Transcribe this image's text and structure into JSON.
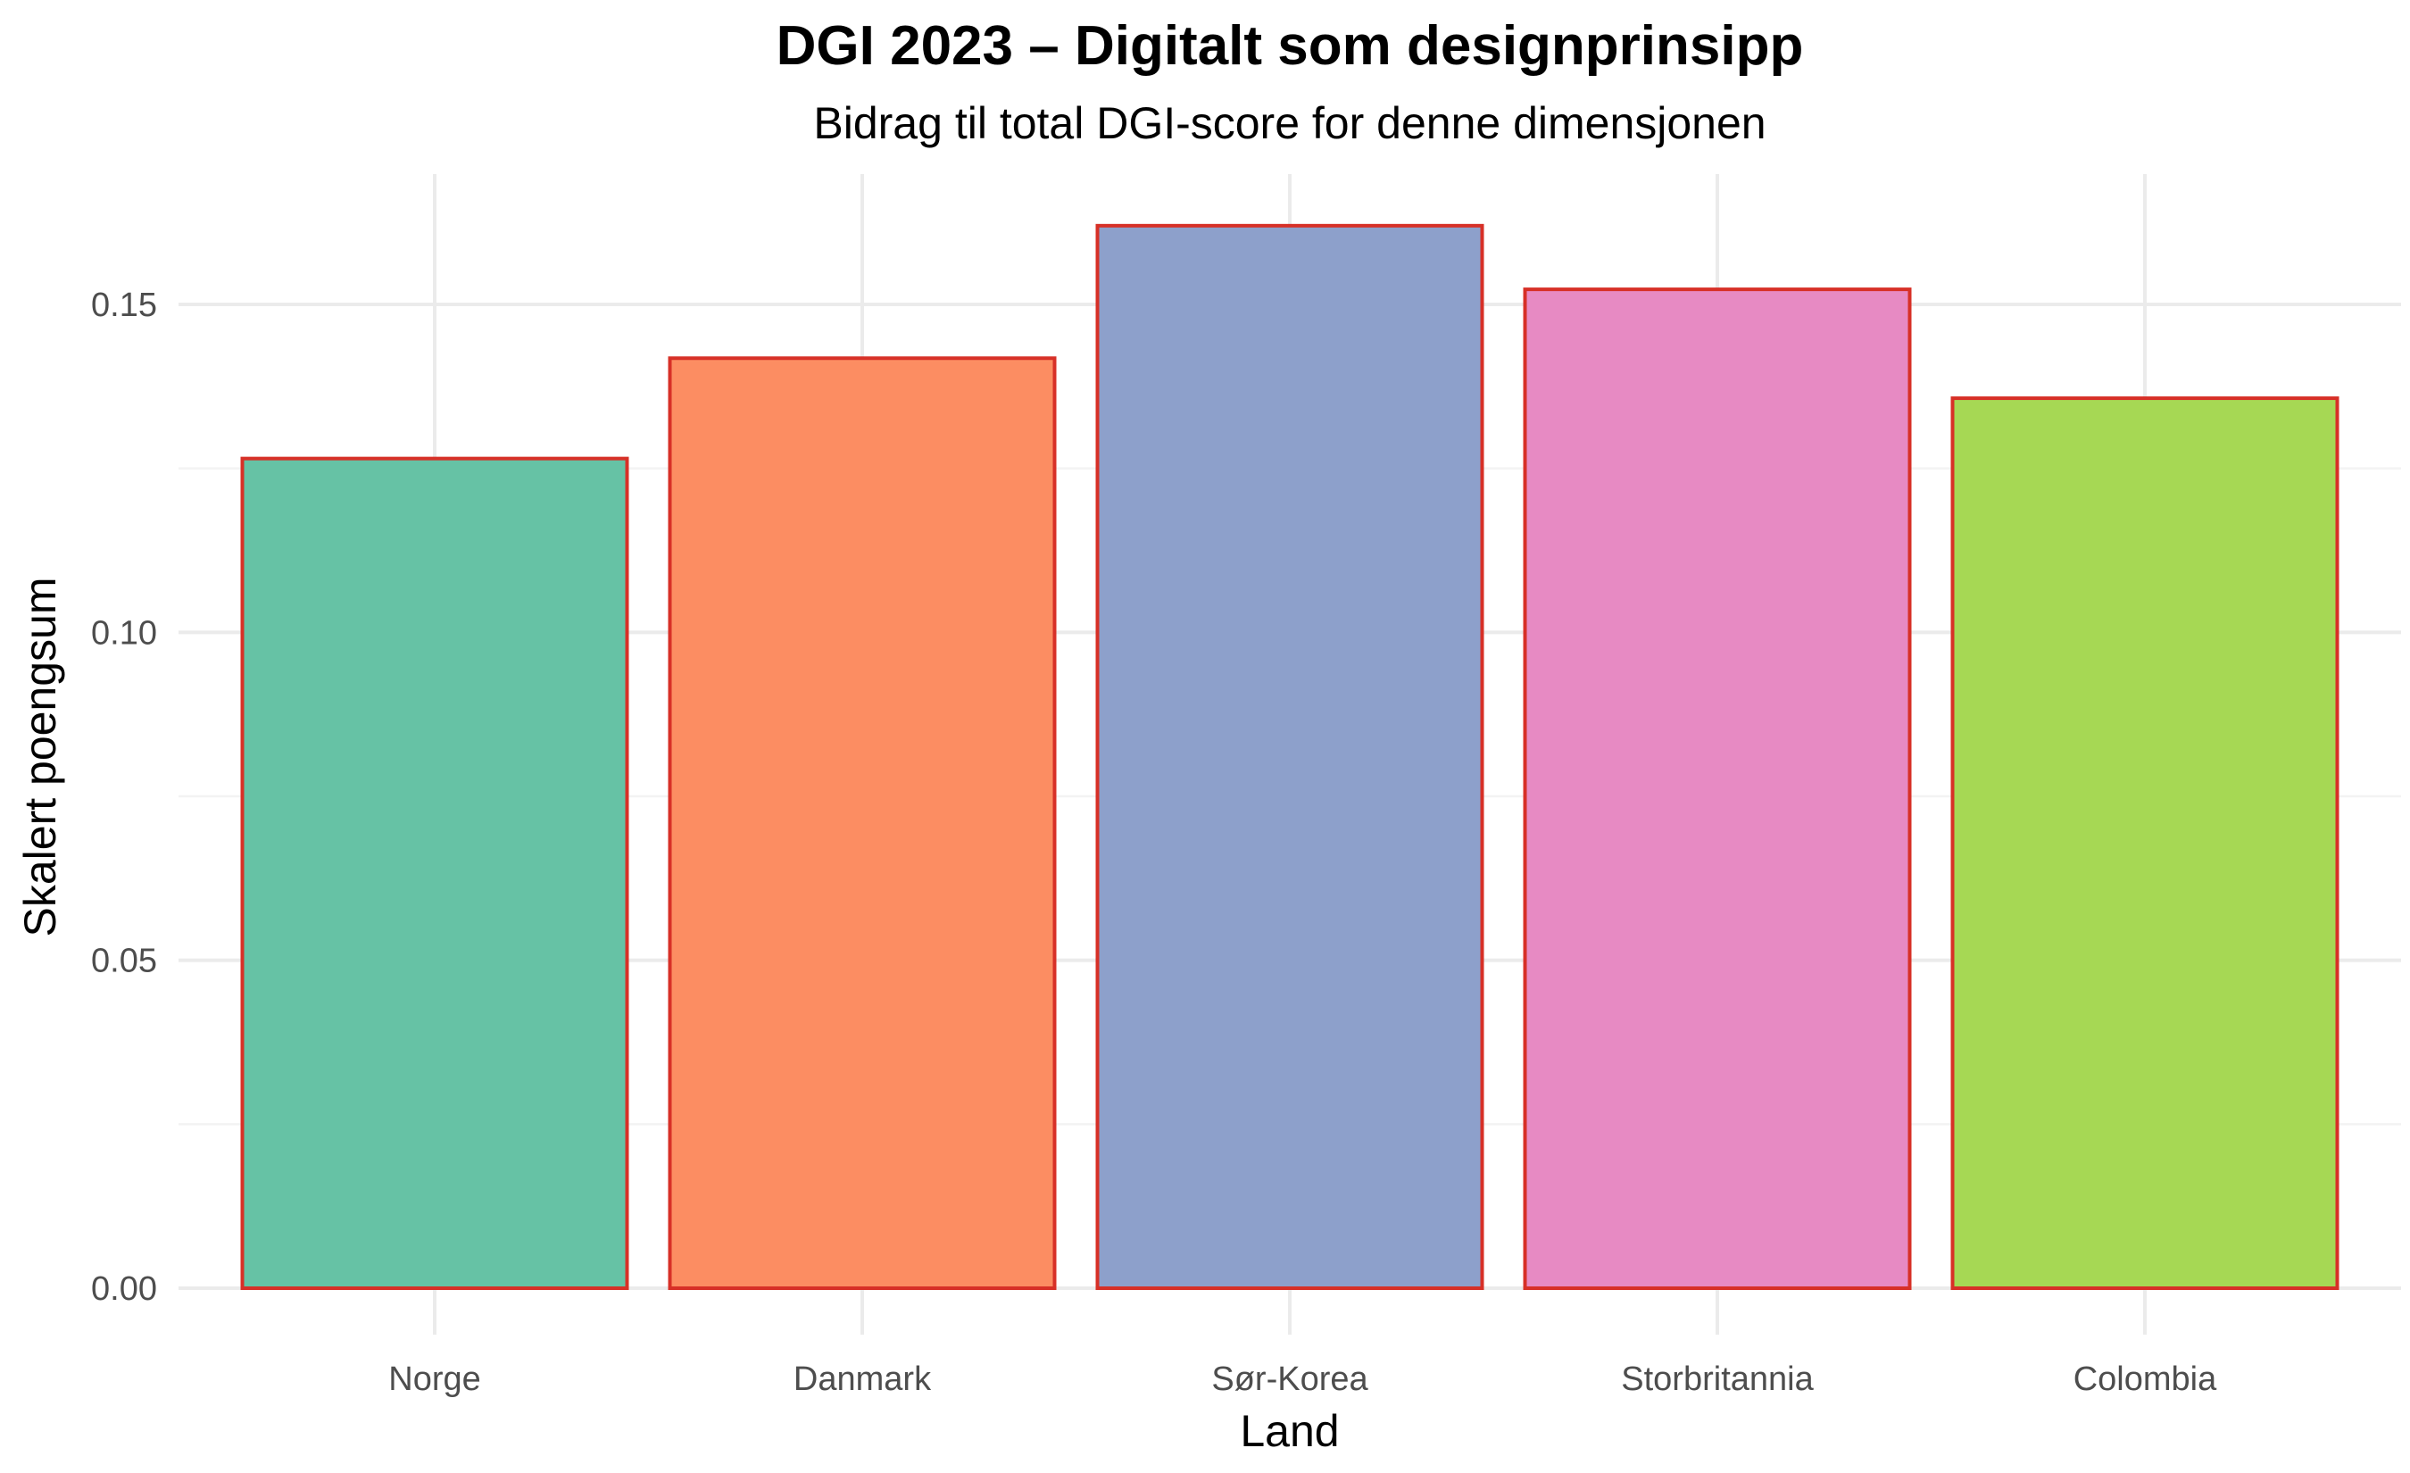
{
  "chart_data": {
    "type": "bar",
    "title": "DGI 2023 – Digitalt som designprinsipp",
    "subtitle": "Bidrag til total DGI-score for denne dimensjonen",
    "xlabel": "Land",
    "ylabel": "Skalert poengsum",
    "categories": [
      "Norge",
      "Danmark",
      "Sør-Korea",
      "Storbritannia",
      "Colombia"
    ],
    "values": [
      0.1265,
      0.1418,
      0.162,
      0.1523,
      0.1357
    ],
    "ylim": [
      0,
      0.17
    ],
    "yticks": [
      0.0,
      0.05,
      0.1,
      0.15
    ],
    "ytick_labels": [
      "0.00",
      "0.05",
      "0.10",
      "0.15"
    ],
    "grid": true,
    "legend": "none",
    "colors": [
      "#66c2a5",
      "#fc8d62",
      "#8da0cb",
      "#e78ac3",
      "#a6d854"
    ],
    "bar_outline_color": "#d73027"
  }
}
